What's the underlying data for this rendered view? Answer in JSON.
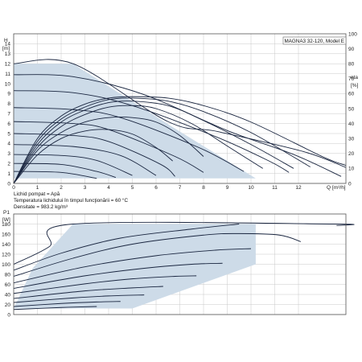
{
  "chart_data": [
    {
      "type": "line",
      "title": "MAGNA3 32-120, Model E",
      "ylabel": "H",
      "yunit": "[m]",
      "y2label": "eta",
      "y2unit": "[%]",
      "xlabel": "Q",
      "xunit": "[m³/h]",
      "xlim": [
        0,
        14
      ],
      "ylim": [
        0,
        15
      ],
      "y2lim": [
        0,
        100
      ],
      "x_ticks": [
        0,
        1,
        2,
        3,
        4,
        5,
        6,
        7,
        8,
        9,
        10,
        11,
        12
      ],
      "y_ticks": [
        0,
        1,
        2,
        3,
        4,
        5,
        6,
        7,
        8,
        9,
        10,
        11,
        12,
        13,
        14
      ],
      "y2_ticks": [
        0,
        10,
        20,
        30,
        40,
        50,
        60,
        70,
        80,
        90,
        100
      ],
      "grid": true,
      "colors": {
        "area": "#cddbe8",
        "curve": "#1a2640",
        "grid": "#c8c8c8"
      },
      "envelope": [
        [
          0,
          12
        ],
        [
          2.5,
          12
        ],
        [
          7.6,
          5.8
        ],
        [
          10.5,
          3.1
        ],
        [
          14,
          1.6
        ],
        [
          14,
          0
        ],
        [
          0,
          0
        ]
      ],
      "operating_area": [
        [
          0,
          12
        ],
        [
          2.5,
          12
        ],
        [
          6.6,
          5.8
        ],
        [
          10.2,
          0.5
        ],
        [
          0,
          0.5
        ]
      ],
      "head_curves": [
        {
          "values": [
            [
              0,
              12
            ],
            [
              2.5,
              12
            ],
            [
              6.5,
              6.2
            ],
            [
              8.6,
              5.2
            ],
            [
              12.2,
              3.2
            ],
            [
              14,
              1.6
            ]
          ]
        },
        {
          "values": [
            [
              0,
              10.9
            ],
            [
              2.5,
              10.7
            ],
            [
              5.5,
              8.9
            ],
            [
              9,
              5.3
            ],
            [
              11.8,
              2.9
            ],
            [
              13.8,
              0.7
            ]
          ]
        },
        {
          "values": [
            [
              0,
              9.3
            ],
            [
              2.5,
              9.1
            ],
            [
              5,
              7.8
            ],
            [
              8.5,
              4.7
            ],
            [
              10.8,
              2.2
            ],
            [
              11.6,
              1.1
            ]
          ]
        },
        {
          "values": [
            [
              0,
              7.6
            ],
            [
              2.5,
              7.4
            ],
            [
              4.5,
              6.6
            ],
            [
              7.8,
              3.6
            ],
            [
              9.7,
              1.2
            ]
          ]
        },
        {
          "values": [
            [
              0,
              6.2
            ],
            [
              2.5,
              6.0
            ],
            [
              4,
              5.4
            ],
            [
              6.8,
              2.7
            ],
            [
              8,
              1.1
            ]
          ]
        },
        {
          "values": [
            [
              0,
              5.0
            ],
            [
              2.5,
              4.8
            ],
            [
              4,
              4.2
            ],
            [
              6.2,
              1.9
            ],
            [
              6.8,
              0.7
            ]
          ]
        },
        {
          "values": [
            [
              0,
              3.9
            ],
            [
              2.5,
              3.7
            ],
            [
              4.5,
              2.8
            ],
            [
              6,
              0.8
            ]
          ]
        },
        {
          "values": [
            [
              0,
              2.9
            ],
            [
              2,
              2.8
            ],
            [
              3.5,
              2.3
            ],
            [
              5,
              0.8
            ]
          ]
        },
        {
          "values": [
            [
              0,
              2.0
            ],
            [
              2,
              1.9
            ],
            [
              3.5,
              1.2
            ],
            [
              4.3,
              0.6
            ]
          ]
        },
        {
          "values": [
            [
              0,
              1.2
            ],
            [
              2,
              1.1
            ],
            [
              3.5,
              0.5
            ]
          ]
        }
      ],
      "eta_curves": [
        {
          "values": [
            [
              0,
              0
            ],
            [
              1,
              30
            ],
            [
              2,
              45
            ],
            [
              3,
              53
            ],
            [
              4,
              57
            ],
            [
              5,
              58
            ],
            [
              6.5,
              57
            ],
            [
              8,
              52
            ],
            [
              10,
              41
            ],
            [
              13,
              18
            ],
            [
              14,
              12
            ]
          ]
        },
        {
          "values": [
            [
              0,
              0
            ],
            [
              1,
              28
            ],
            [
              2,
              43
            ],
            [
              3,
              51
            ],
            [
              4,
              56
            ],
            [
              5,
              57
            ],
            [
              6.5,
              55
            ],
            [
              8,
              48
            ],
            [
              10,
              34
            ],
            [
              12.5,
              11
            ]
          ]
        },
        {
          "values": [
            [
              0,
              0
            ],
            [
              1,
              26
            ],
            [
              2,
              41
            ],
            [
              3,
              49
            ],
            [
              4,
              54
            ],
            [
              5,
              55
            ],
            [
              6.5,
              52
            ],
            [
              8,
              42
            ],
            [
              10,
              26
            ],
            [
              11.8,
              10
            ]
          ]
        },
        {
          "values": [
            [
              0,
              0
            ],
            [
              1,
              24
            ],
            [
              2,
              38
            ],
            [
              3,
              46
            ],
            [
              4,
              51
            ],
            [
              5,
              52
            ],
            [
              6,
              50
            ],
            [
              7.5,
              40
            ],
            [
              9,
              25
            ],
            [
              10.5,
              10
            ]
          ]
        },
        {
          "values": [
            [
              0,
              0
            ],
            [
              1,
              22
            ],
            [
              2,
              34
            ],
            [
              3,
              41
            ],
            [
              4,
              44
            ],
            [
              5,
              44
            ],
            [
              6,
              41
            ],
            [
              7,
              32
            ],
            [
              8,
              18
            ]
          ]
        },
        {
          "values": [
            [
              0,
              0
            ],
            [
              1,
              19
            ],
            [
              2,
              30
            ],
            [
              3,
              35
            ],
            [
              4,
              36
            ],
            [
              5,
              33
            ],
            [
              6,
              24
            ],
            [
              6.7,
              15
            ]
          ]
        }
      ]
    },
    {
      "type": "line",
      "ylabel": "P1",
      "yunit": "[W]",
      "xlim": [
        0,
        14
      ],
      "ylim": [
        0,
        200
      ],
      "y_ticks": [
        0,
        20,
        40,
        60,
        80,
        100,
        120,
        140,
        160,
        180
      ],
      "grid": true,
      "colors": {
        "area": "#cddbe8",
        "curve": "#1a2640",
        "grid": "#c8c8c8"
      },
      "operating_area": [
        [
          0.8,
          92
        ],
        [
          2.5,
          180
        ],
        [
          10.2,
          180
        ],
        [
          10.2,
          100
        ],
        [
          5,
          12
        ],
        [
          0,
          12
        ]
      ],
      "power_curves": [
        {
          "values": [
            [
              0,
              100
            ],
            [
              1.5,
              135
            ],
            [
              2.5,
              180
            ],
            [
              13.5,
              180
            ],
            [
              13.6,
              177
            ]
          ]
        },
        {
          "values": [
            [
              0,
              88
            ],
            [
              2,
              122
            ],
            [
              4.5,
              152
            ],
            [
              7.5,
              170
            ],
            [
              9.5,
              180
            ]
          ]
        },
        {
          "values": [
            [
              0,
              76
            ],
            [
              2.5,
              112
            ],
            [
              5,
              140
            ],
            [
              8,
              158
            ],
            [
              9.5,
              161
            ],
            [
              11.2,
              158
            ],
            [
              12.1,
              145
            ]
          ]
        },
        {
          "values": [
            [
              0,
              63
            ],
            [
              3,
              95
            ],
            [
              6,
              117
            ],
            [
              8.5,
              128
            ],
            [
              10,
              131
            ]
          ]
        },
        {
          "values": [
            [
              0,
              52
            ],
            [
              3,
              77
            ],
            [
              5.5,
              92
            ],
            [
              7.5,
              100
            ],
            [
              8.8,
              102
            ]
          ]
        },
        {
          "values": [
            [
              0,
              42
            ],
            [
              3,
              61
            ],
            [
              5,
              71
            ],
            [
              6.8,
              76
            ],
            [
              7.7,
              77
            ]
          ]
        },
        {
          "values": [
            [
              0,
              32
            ],
            [
              3,
              47
            ],
            [
              5,
              53
            ],
            [
              6.3,
              56
            ]
          ]
        },
        {
          "values": [
            [
              0,
              24
            ],
            [
              2.5,
              33
            ],
            [
              4,
              37
            ],
            [
              5.5,
              39
            ]
          ]
        },
        {
          "values": [
            [
              0,
              16
            ],
            [
              2,
              22
            ],
            [
              3.5,
              25
            ],
            [
              4.5,
              26
            ]
          ]
        },
        {
          "values": [
            [
              0,
              10
            ],
            [
              2,
              14
            ],
            [
              3.5,
              16
            ]
          ]
        }
      ]
    }
  ],
  "notes": {
    "line1": "Lichid pompat = Apă",
    "line2": "Temperatura lichidului în timpul funcţionării = 60 °C",
    "line3": "Densitate = 983.2 kg/m³"
  }
}
